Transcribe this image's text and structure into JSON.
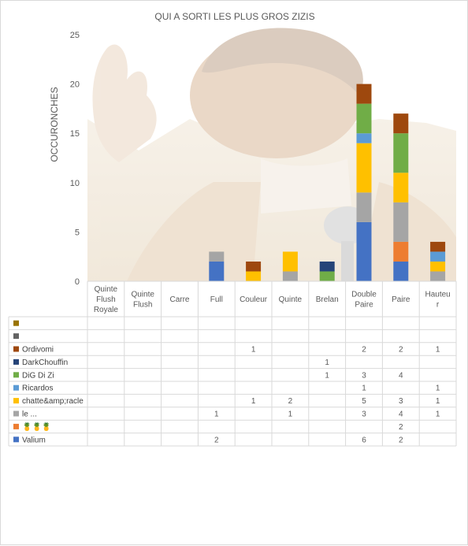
{
  "chart_data": {
    "type": "bar",
    "stacked": true,
    "title": "QUI A SORTI LES PLUS GROS ZIZIS",
    "xlabel": "",
    "ylabel": "OCCURONCHES",
    "ylim": [
      0,
      25
    ],
    "yticks": [
      0,
      5,
      10,
      15,
      20,
      25
    ],
    "grid": false,
    "legend": "data-table",
    "categories": [
      "Quinte Flush Royale",
      "Quinte Flush",
      "Carre",
      "Full",
      "Couleur",
      "Quinte",
      "Brelan",
      "Double Paire",
      "Paire",
      "Hauteur"
    ],
    "category_lines": [
      [
        "Quinte",
        "Flush",
        "Royale"
      ],
      [
        "Quinte",
        "Flush"
      ],
      [
        "Carre"
      ],
      [
        "Full"
      ],
      [
        "Couleur"
      ],
      [
        "Quinte"
      ],
      [
        "Brelan"
      ],
      [
        "Double",
        "Paire"
      ],
      [
        "Paire"
      ],
      [
        "Hauteu",
        "r"
      ]
    ],
    "series": [
      {
        "name": "Valium",
        "color": "#4472c4",
        "values": [
          null,
          null,
          null,
          2,
          null,
          null,
          null,
          6,
          2,
          null
        ]
      },
      {
        "name": "🍍🍍🍍",
        "color": "#ed7d31",
        "values": [
          null,
          null,
          null,
          null,
          null,
          null,
          null,
          null,
          2,
          null
        ]
      },
      {
        "name": "le ...",
        "color": "#a5a5a5",
        "values": [
          null,
          null,
          null,
          1,
          null,
          1,
          null,
          3,
          4,
          1
        ]
      },
      {
        "name": "chatte&amp;racle",
        "color": "#ffc000",
        "values": [
          null,
          null,
          null,
          null,
          1,
          2,
          null,
          5,
          3,
          1
        ]
      },
      {
        "name": "Ricardos",
        "color": "#5b9bd5",
        "values": [
          null,
          null,
          null,
          null,
          null,
          null,
          null,
          1,
          null,
          1
        ]
      },
      {
        "name": "DiG Di Zi",
        "color": "#70ad47",
        "values": [
          null,
          null,
          null,
          null,
          null,
          null,
          1,
          3,
          4,
          null
        ]
      },
      {
        "name": "DarkChouffin",
        "color": "#264478",
        "values": [
          null,
          null,
          null,
          null,
          null,
          null,
          1,
          null,
          null,
          null
        ]
      },
      {
        "name": "Ordivomi",
        "color": "#9e480e",
        "values": [
          null,
          null,
          null,
          null,
          1,
          null,
          null,
          2,
          2,
          1
        ]
      },
      {
        "name": "",
        "color": "#636363",
        "values": [
          null,
          null,
          null,
          null,
          null,
          null,
          null,
          null,
          null,
          null
        ]
      },
      {
        "name": "",
        "color": "#997300",
        "values": [
          null,
          null,
          null,
          null,
          null,
          null,
          null,
          null,
          null,
          null
        ]
      }
    ]
  }
}
